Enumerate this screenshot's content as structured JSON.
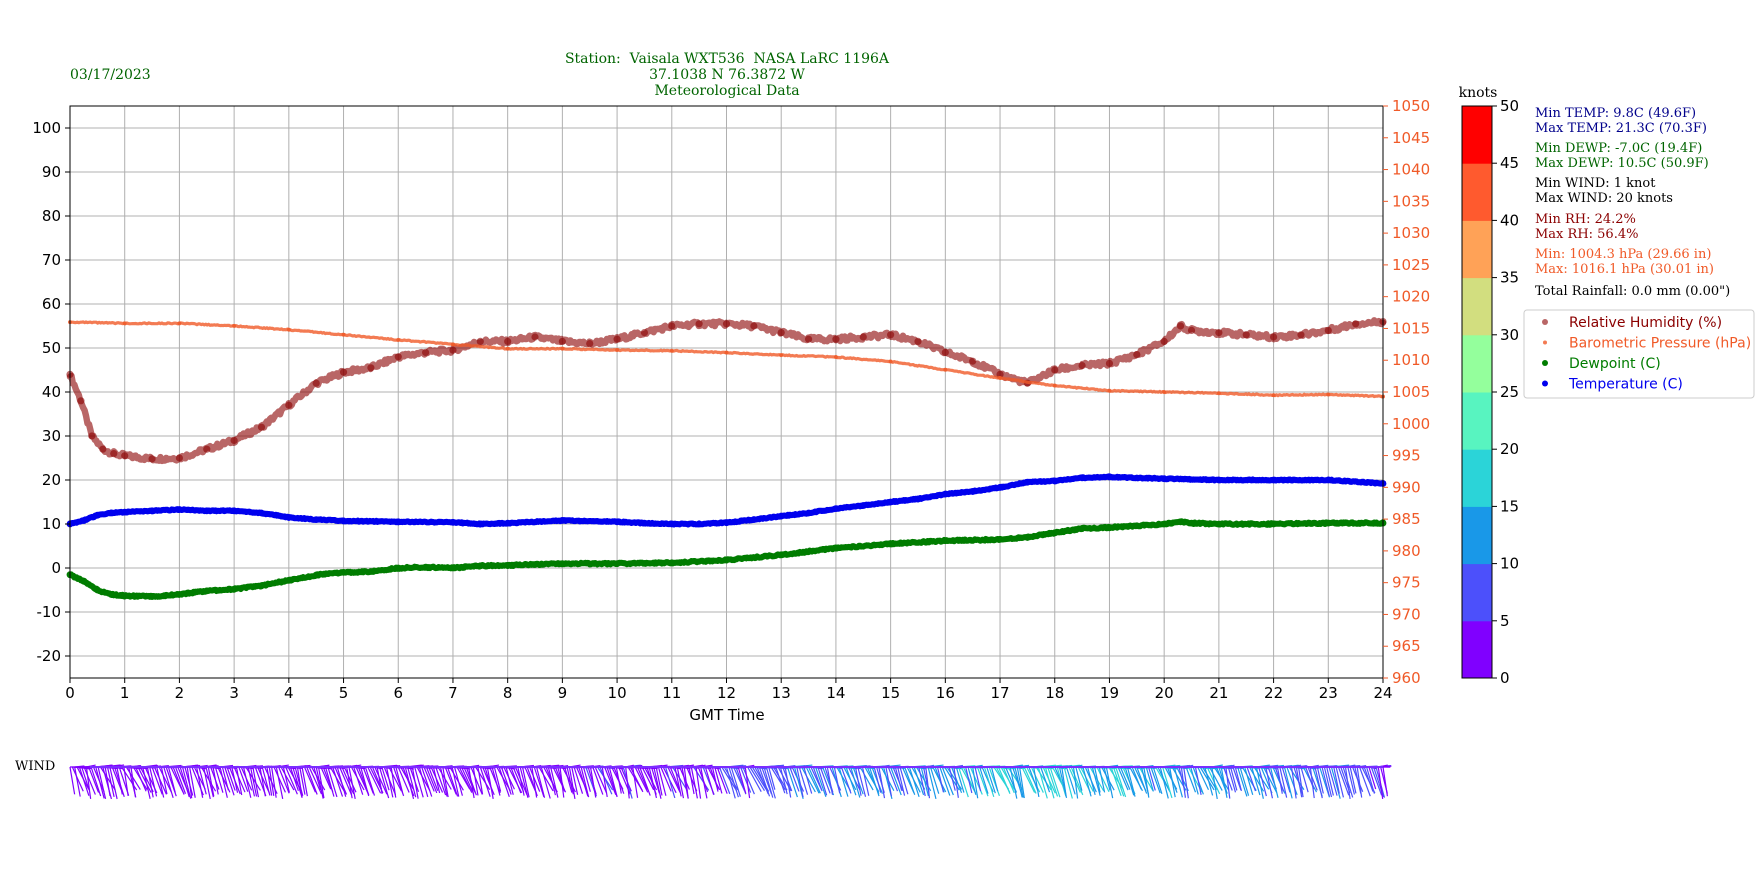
{
  "header": {
    "date": "03/17/2023",
    "title_lines": [
      "Station:  Vaisala WXT536  NASA LaRC 1196A",
      "37.1038 N 76.3872 W",
      "Meteorological Data"
    ]
  },
  "chart_data": {
    "type": "line",
    "xlabel": "GMT Time",
    "xlim": [
      0,
      24
    ],
    "x_ticks": [
      "0",
      "1",
      "2",
      "3",
      "4",
      "5",
      "6",
      "7",
      "8",
      "9",
      "10",
      "11",
      "12",
      "13",
      "14",
      "15",
      "16",
      "17",
      "18",
      "19",
      "20",
      "21",
      "22",
      "23",
      "24"
    ],
    "left_axis": {
      "ylim": [
        -25,
        105
      ],
      "ticks": [
        "-20",
        "-10",
        "0",
        "10",
        "20",
        "30",
        "40",
        "50",
        "60",
        "70",
        "80",
        "90",
        "100"
      ]
    },
    "right_axis": {
      "ylim": [
        960,
        1050
      ],
      "ticks": [
        "960",
        "965",
        "970",
        "975",
        "980",
        "985",
        "990",
        "995",
        "1000",
        "1005",
        "1010",
        "1015",
        "1020",
        "1025",
        "1030",
        "1035",
        "1040",
        "1045",
        "1050"
      ],
      "color": "#f05a28"
    },
    "grid": true,
    "legend_position": "right",
    "series": [
      {
        "name": "Relative Humidity (%)",
        "axis": "left",
        "color": "#8b0000",
        "x": [
          0,
          0.2,
          0.4,
          0.6,
          0.8,
          1.0,
          1.5,
          2.0,
          2.5,
          3.0,
          3.5,
          4.0,
          4.5,
          5.0,
          5.5,
          6.0,
          6.5,
          7.0,
          7.5,
          8.0,
          8.5,
          9.0,
          9.5,
          10.0,
          10.5,
          11.0,
          11.5,
          12.0,
          12.5,
          13.0,
          13.5,
          14.0,
          14.5,
          15.0,
          15.5,
          16.0,
          16.5,
          17.0,
          17.5,
          18.0,
          18.5,
          19.0,
          19.5,
          20.0,
          20.3,
          20.5,
          21.0,
          21.5,
          22.0,
          22.5,
          23.0,
          23.5,
          24.0
        ],
        "values": [
          44,
          38,
          30,
          27,
          26,
          25.5,
          24.8,
          25,
          27,
          29,
          32,
          37,
          42,
          44.5,
          45.5,
          48,
          49,
          49.5,
          51.5,
          51.5,
          52.5,
          51.5,
          51,
          52,
          53.5,
          55,
          55.5,
          55.5,
          55,
          53.5,
          52,
          52,
          52.5,
          53,
          51.5,
          49,
          47,
          44,
          42,
          45,
          46,
          46.5,
          48.5,
          51.5,
          55,
          54,
          53.5,
          53,
          52.5,
          53,
          54,
          55.5,
          56
        ]
      },
      {
        "name": "Barometric Pressure (hPa)",
        "axis": "right",
        "color": "#f05a28",
        "x": [
          0,
          1,
          2,
          3,
          4,
          5,
          6,
          7,
          8,
          9,
          10,
          11,
          12,
          13,
          14,
          15,
          16,
          17,
          18,
          19,
          20,
          21,
          22,
          23,
          24
        ],
        "values": [
          1016,
          1015.8,
          1015.8,
          1015.4,
          1014.8,
          1014,
          1013.2,
          1012.5,
          1011.8,
          1011.8,
          1011.6,
          1011.5,
          1011.2,
          1010.8,
          1010.5,
          1009.8,
          1008.5,
          1007.2,
          1006,
          1005.2,
          1005,
          1004.8,
          1004.5,
          1004.6,
          1004.3
        ]
      },
      {
        "name": "Dewpoint (C)",
        "axis": "left",
        "color": "#007c00",
        "x": [
          0,
          0.25,
          0.5,
          0.75,
          1.0,
          1.5,
          2.0,
          2.5,
          3.0,
          3.5,
          4.0,
          4.5,
          5.0,
          5.5,
          6.0,
          6.5,
          7.0,
          7.5,
          8.0,
          8.5,
          9.0,
          10.0,
          11.0,
          12.0,
          13.0,
          14.0,
          15.0,
          16.0,
          17.0,
          17.5,
          18.0,
          18.5,
          19.0,
          19.5,
          20.0,
          20.3,
          20.5,
          21.0,
          22.0,
          23.0,
          24.0
        ],
        "values": [
          -1.5,
          -3,
          -5,
          -6,
          -6.3,
          -6.5,
          -6,
          -5.2,
          -4.8,
          -4,
          -2.8,
          -1.6,
          -1,
          -0.8,
          0,
          0.2,
          0,
          0.5,
          0.6,
          0.8,
          1,
          1,
          1.2,
          1.8,
          3,
          4.5,
          5.5,
          6.2,
          6.5,
          7,
          8,
          9,
          9.2,
          9.6,
          10,
          10.5,
          10.2,
          10,
          10,
          10.2,
          10.2
        ]
      },
      {
        "name": "Temperature (C)",
        "axis": "left",
        "color": "#0000ee",
        "x": [
          0,
          0.25,
          0.5,
          0.75,
          1.0,
          1.5,
          2.0,
          2.5,
          3.0,
          3.5,
          4.0,
          4.5,
          5.0,
          6.0,
          7.0,
          7.5,
          8.0,
          9.0,
          10.0,
          10.5,
          11.0,
          11.5,
          12.0,
          12.5,
          13.0,
          13.5,
          14.0,
          14.5,
          15.0,
          15.5,
          16.0,
          16.5,
          17.0,
          17.5,
          18.0,
          18.5,
          19.0,
          20.0,
          21.0,
          22.0,
          23.0,
          24.0
        ],
        "values": [
          10,
          10.8,
          12,
          12.5,
          12.7,
          13,
          13.3,
          13,
          13,
          12.5,
          11.5,
          11,
          10.7,
          10.5,
          10.4,
          10,
          10.2,
          10.8,
          10.5,
          10.2,
          10,
          10,
          10.3,
          11,
          11.8,
          12.5,
          13.5,
          14.2,
          15,
          15.7,
          16.8,
          17.4,
          18.3,
          19.5,
          19.8,
          20.5,
          20.7,
          20.3,
          20,
          20,
          20,
          19.2
        ]
      }
    ]
  },
  "colorbar": {
    "label": "knots",
    "ticks": [
      "0",
      "5",
      "10",
      "15",
      "20",
      "25",
      "30",
      "35",
      "40",
      "45",
      "50"
    ],
    "range": [
      0,
      50
    ],
    "colors": [
      "#8000ff",
      "#4c50fb",
      "#1998e8",
      "#2bd4d8",
      "#58f4c0",
      "#94ff9c",
      "#d2de7f",
      "#ffa257",
      "#ff5a2e",
      "#ff0000"
    ]
  },
  "stats": [
    {
      "text": "Min TEMP: 9.8C (49.6F)",
      "color": "#00008b"
    },
    {
      "text": "Max TEMP: 21.3C (70.3F)",
      "color": "#00008b"
    },
    {
      "text": "Min DEWP: -7.0C (19.4F)",
      "color": "#006400"
    },
    {
      "text": "Max DEWP: 10.5C (50.9F)",
      "color": "#006400"
    },
    {
      "text": "Min WIND: 1 knot",
      "color": "#000000"
    },
    {
      "text": "Max WIND: 20 knots",
      "color": "#000000"
    },
    {
      "text": "Min RH: 24.2%",
      "color": "#8b0000"
    },
    {
      "text": "Max RH: 56.4%",
      "color": "#8b0000"
    },
    {
      "text": "Min: 1004.3 hPa (29.66 in)",
      "color": "#f05a28"
    },
    {
      "text": "Max: 1016.1 hPa (30.01 in)",
      "color": "#f05a28"
    },
    {
      "text": "Total Rainfall: 0.0 mm (0.00\")",
      "color": "#000000"
    }
  ],
  "wind": {
    "label": "WIND",
    "x": [
      0,
      1,
      2,
      3,
      4,
      5,
      6,
      7,
      8,
      9,
      10,
      11,
      12,
      13,
      14,
      15,
      16,
      17,
      18,
      19,
      20,
      21,
      22,
      23,
      24
    ],
    "speed_knots": [
      2,
      3,
      3,
      3,
      3,
      3,
      3,
      3,
      3,
      4,
      4,
      4,
      5,
      8,
      10,
      10,
      12,
      14,
      15,
      14,
      13,
      12,
      10,
      8,
      6
    ]
  }
}
